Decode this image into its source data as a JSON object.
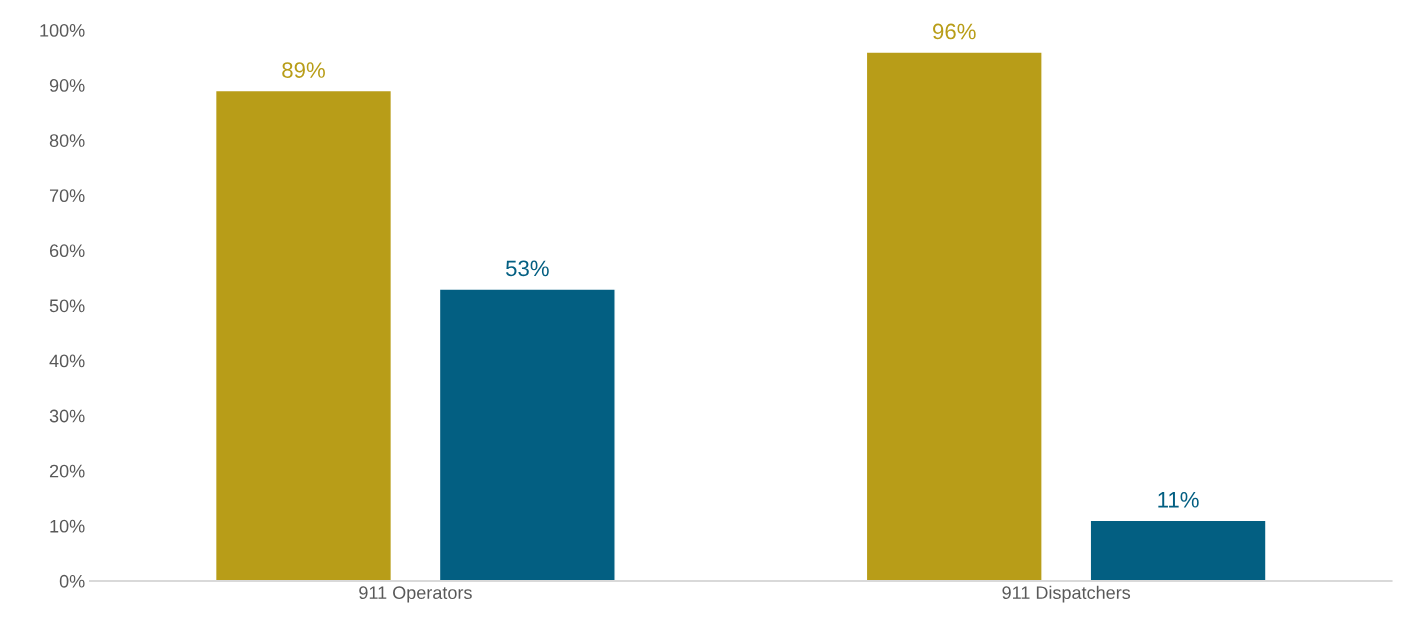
{
  "chart_data": {
    "type": "bar",
    "categories": [
      "911 Operators",
      "911 Dispatchers"
    ],
    "series": [
      {
        "color": "#b89d18",
        "values": [
          89,
          96
        ],
        "value_labels": [
          "89%",
          "96%"
        ]
      },
      {
        "color": "#035f82",
        "values": [
          53,
          11
        ],
        "value_labels": [
          "53%",
          "11%"
        ]
      }
    ],
    "ylim": [
      0,
      100
    ],
    "yticks": [
      {
        "value": 0,
        "label": "0%"
      },
      {
        "value": 10,
        "label": "10%"
      },
      {
        "value": 20,
        "label": "20%"
      },
      {
        "value": 30,
        "label": "30%"
      },
      {
        "value": 40,
        "label": "40%"
      },
      {
        "value": 50,
        "label": "50%"
      },
      {
        "value": 60,
        "label": "60%"
      },
      {
        "value": 70,
        "label": "70%"
      },
      {
        "value": 80,
        "label": "80%"
      },
      {
        "value": 90,
        "label": "90%"
      },
      {
        "value": 100,
        "label": "100%"
      }
    ],
    "grid": false
  }
}
